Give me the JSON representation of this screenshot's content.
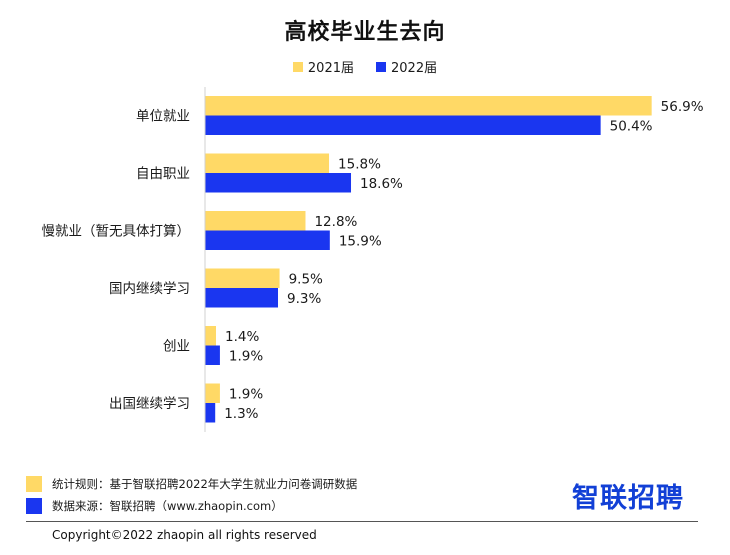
{
  "chart_data": {
    "type": "bar",
    "orientation": "horizontal",
    "title": "高校毕业生去向",
    "categories": [
      "单位就业",
      "自由职业",
      "慢就业（暂无具体打算）",
      "国内继续学习",
      "创业",
      "出国继续学习"
    ],
    "series": [
      {
        "name": "2021届",
        "color": "#FFD966",
        "values": [
          56.9,
          15.8,
          12.8,
          9.5,
          1.4,
          1.9
        ],
        "labels": [
          "56.9%",
          "15.8%",
          "12.8%",
          "9.5%",
          "1.4%",
          "1.9%"
        ]
      },
      {
        "name": "2022届",
        "color": "#1A36F0",
        "values": [
          50.4,
          18.6,
          15.9,
          9.3,
          1.9,
          1.3
        ],
        "labels": [
          "50.4%",
          "18.6%",
          "15.9%",
          "9.3%",
          "1.9%",
          "1.3%"
        ]
      }
    ],
    "xlim": [
      0,
      60
    ],
    "grid": false,
    "legend": "top-center"
  },
  "footer": {
    "note1": "统计规则：基于智联招聘2022年大学生就业力问卷调研数据",
    "note2": "数据来源：智联招聘（www.zhaopin.com）",
    "note1_color": "#FFD966",
    "note2_color": "#1A36F0",
    "logo": "智联招聘",
    "copyright": "Copyright©2022 zhaopin all rights reserved"
  }
}
